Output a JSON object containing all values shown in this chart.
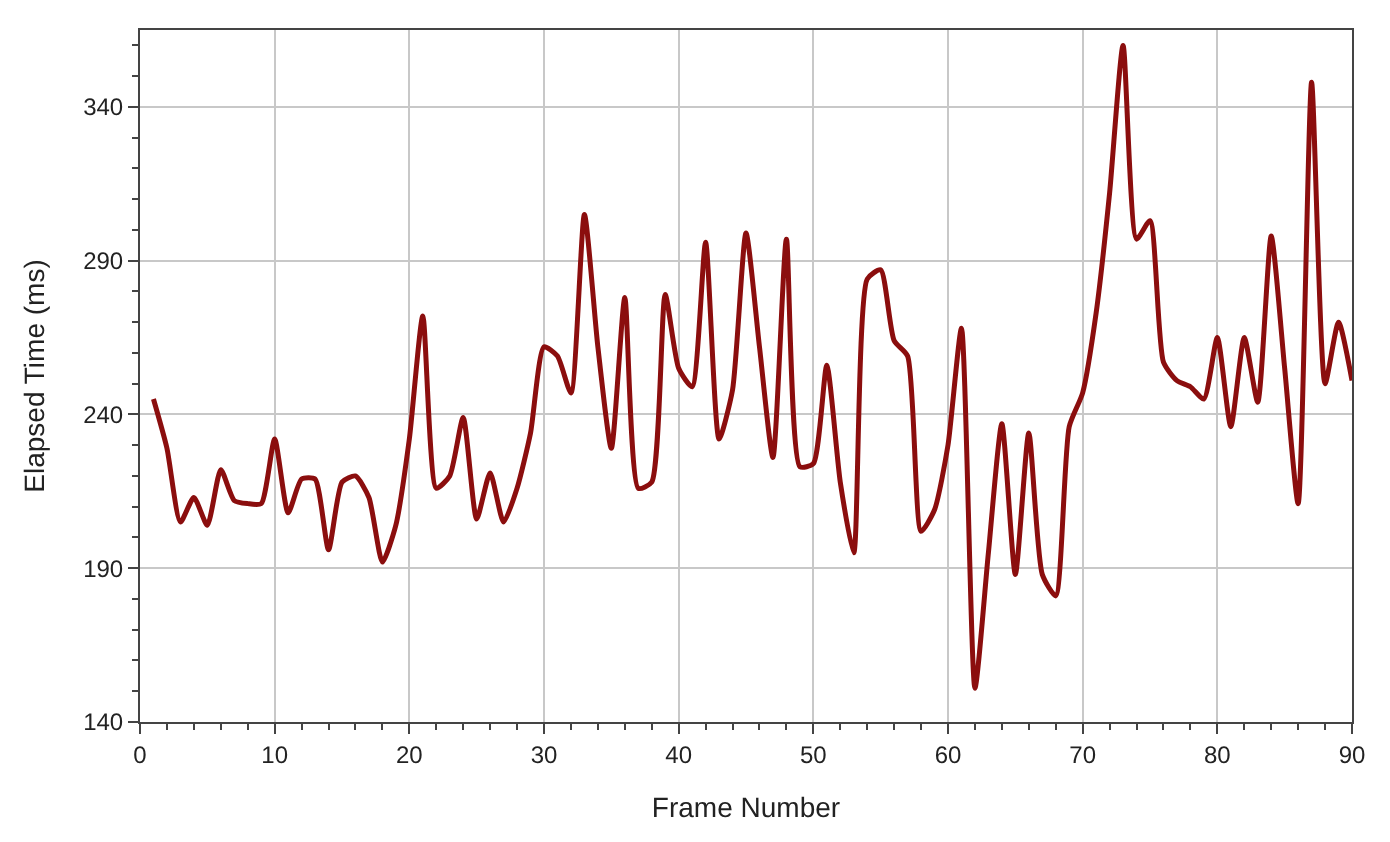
{
  "chart_data": {
    "type": "line",
    "xlabel": "Frame Number",
    "ylabel": "Elapsed Time (ms)",
    "x": [
      1,
      2,
      3,
      4,
      5,
      6,
      7,
      8,
      9,
      10,
      11,
      12,
      13,
      14,
      15,
      16,
      17,
      18,
      19,
      20,
      21,
      22,
      23,
      24,
      25,
      26,
      27,
      28,
      29,
      30,
      31,
      32,
      33,
      34,
      35,
      36,
      37,
      38,
      39,
      40,
      41,
      42,
      43,
      44,
      45,
      46,
      47,
      48,
      49,
      50,
      51,
      52,
      53,
      54,
      55,
      56,
      57,
      58,
      59,
      60,
      61,
      62,
      63,
      64,
      65,
      66,
      67,
      68,
      69,
      70,
      71,
      72,
      73,
      74,
      75,
      76,
      77,
      78,
      79,
      80,
      81,
      82,
      83,
      84,
      85,
      86,
      87,
      88,
      89,
      90
    ],
    "series": [
      {
        "color": "#8b0e0e",
        "values": [
          245,
          229,
          205,
          213,
          204,
          222,
          212,
          211,
          211,
          232,
          208,
          219,
          219,
          196,
          218,
          220,
          213,
          192,
          204,
          232,
          272,
          216,
          220,
          239,
          206,
          221,
          205,
          216,
          234,
          262,
          259,
          247,
          305,
          262,
          229,
          278,
          216,
          218,
          279,
          255,
          249,
          296,
          232,
          248,
          299,
          262,
          226,
          297,
          223,
          224,
          256,
          218,
          195,
          284,
          287,
          264,
          259,
          202,
          209,
          230,
          268,
          151,
          195,
          237,
          188,
          234,
          188,
          181,
          236,
          247,
          273,
          312,
          360,
          297,
          303,
          257,
          251,
          249,
          245,
          265,
          236,
          265,
          244,
          298,
          255,
          211,
          348,
          250,
          270,
          251
        ]
      }
    ],
    "xlim": [
      0,
      90
    ],
    "xticks": [
      0,
      10,
      20,
      30,
      40,
      50,
      60,
      70,
      80,
      90
    ],
    "ylim": [
      140,
      365
    ],
    "yticks": [
      140,
      190,
      240,
      290,
      340
    ],
    "grid": true,
    "legend": false,
    "marker": "none",
    "line_style": "solid"
  }
}
